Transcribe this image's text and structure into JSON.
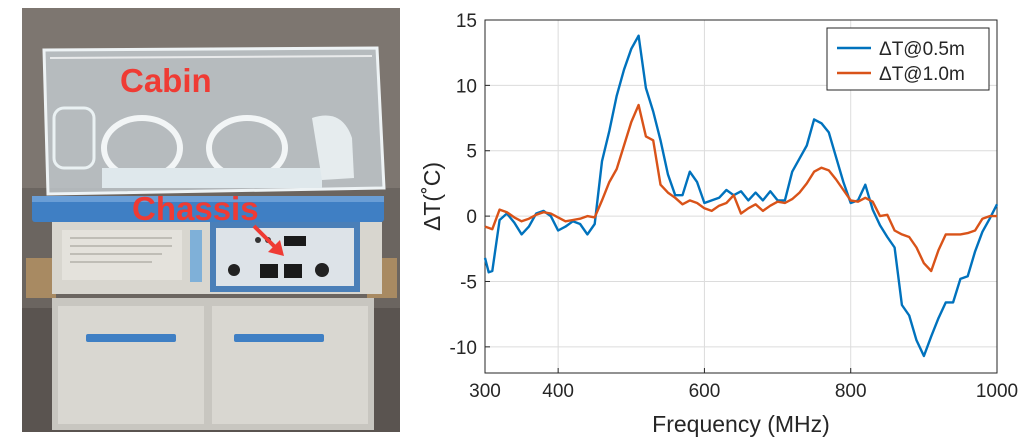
{
  "photo": {
    "labels": {
      "cabin": "Cabin",
      "chassis": "Chassis"
    },
    "colors": {
      "label": "#ef3b34",
      "rail": "#3f7fc4"
    },
    "panel_icons": [
      "control-knob-icon",
      "digital-display-icon",
      "arrow-icon"
    ]
  },
  "chart_data": {
    "type": "line",
    "title": "",
    "xlabel": "Frequency (MHz)",
    "ylabel": "ΔT(˚C)",
    "xlim": [
      300,
      1000
    ],
    "ylim": [
      -12,
      15
    ],
    "xticks": [
      300,
      400,
      600,
      800,
      1000
    ],
    "yticks": [
      15,
      10,
      5,
      0,
      -5,
      -10
    ],
    "grid": true,
    "legend": "top-right",
    "series": [
      {
        "name": "ΔT@0.5m",
        "color": "#0072bd",
        "x": [
          300,
          305,
          310,
          320,
          330,
          340,
          350,
          360,
          370,
          380,
          390,
          400,
          410,
          420,
          430,
          440,
          450,
          460,
          470,
          480,
          490,
          500,
          510,
          520,
          530,
          540,
          550,
          560,
          570,
          580,
          590,
          600,
          610,
          620,
          630,
          640,
          650,
          660,
          670,
          680,
          690,
          700,
          710,
          720,
          730,
          740,
          750,
          760,
          770,
          780,
          790,
          800,
          810,
          820,
          830,
          840,
          850,
          860,
          870,
          880,
          890,
          900,
          910,
          920,
          930,
          940,
          950,
          960,
          970,
          980,
          990,
          1000
        ],
        "y": [
          -3.2,
          -4.3,
          -4.2,
          -0.3,
          0.2,
          -0.5,
          -1.4,
          -0.8,
          0.2,
          0.4,
          0.0,
          -1.1,
          -0.8,
          -0.4,
          -0.6,
          -1.4,
          -0.6,
          4.2,
          6.5,
          9.2,
          11.2,
          12.8,
          13.8,
          9.8,
          8.0,
          5.8,
          3.2,
          1.6,
          1.6,
          3.4,
          2.6,
          1.0,
          1.2,
          1.4,
          2.0,
          1.6,
          1.9,
          1.2,
          1.8,
          1.2,
          1.9,
          1.2,
          1.2,
          3.4,
          4.4,
          5.4,
          7.4,
          7.1,
          6.4,
          4.5,
          2.6,
          1.0,
          1.2,
          2.4,
          0.5,
          -0.7,
          -1.6,
          -2.4,
          -6.8,
          -7.6,
          -9.5,
          -10.7,
          -9.2,
          -7.8,
          -6.6,
          -6.6,
          -4.8,
          -4.6,
          -2.7,
          -1.2,
          -0.2,
          0.9
        ]
      },
      {
        "name": "ΔT@1.0m",
        "color": "#d95319",
        "x": [
          300,
          305,
          310,
          320,
          330,
          340,
          350,
          360,
          370,
          380,
          390,
          400,
          410,
          420,
          430,
          440,
          450,
          460,
          470,
          480,
          490,
          500,
          510,
          520,
          530,
          540,
          550,
          560,
          570,
          580,
          590,
          600,
          610,
          620,
          630,
          640,
          650,
          660,
          670,
          680,
          690,
          700,
          710,
          720,
          730,
          740,
          750,
          760,
          770,
          780,
          790,
          800,
          810,
          820,
          830,
          840,
          850,
          860,
          870,
          880,
          890,
          900,
          910,
          920,
          930,
          940,
          950,
          960,
          970,
          980,
          990,
          1000
        ],
        "y": [
          -0.8,
          -0.9,
          -1.0,
          0.5,
          0.3,
          -0.1,
          -0.4,
          -0.2,
          0.1,
          0.3,
          0.2,
          -0.1,
          -0.4,
          -0.3,
          -0.2,
          0.0,
          -0.1,
          1.2,
          2.6,
          3.6,
          5.4,
          7.2,
          8.5,
          6.1,
          5.8,
          2.4,
          1.8,
          1.4,
          0.9,
          1.2,
          1.0,
          0.6,
          0.4,
          0.8,
          1.0,
          1.6,
          0.2,
          0.6,
          0.9,
          0.4,
          0.8,
          1.1,
          1.0,
          1.3,
          1.8,
          2.5,
          3.4,
          3.7,
          3.5,
          2.8,
          2.0,
          1.2,
          1.1,
          1.4,
          1.1,
          0.0,
          0.1,
          -1.1,
          -1.4,
          -1.6,
          -2.4,
          -3.6,
          -4.2,
          -2.6,
          -1.4,
          -1.4,
          -1.4,
          -1.3,
          -1.1,
          -0.2,
          0.0,
          0.0
        ]
      }
    ]
  }
}
